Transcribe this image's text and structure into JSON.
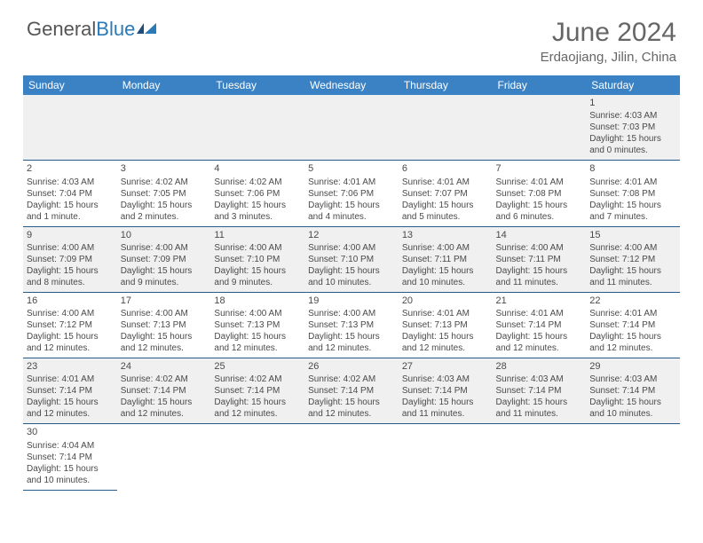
{
  "logo": {
    "text1": "General",
    "text2": "Blue"
  },
  "title": "June 2024",
  "subtitle": "Erdaojiang, Jilin, China",
  "colors": {
    "header_bg": "#3b82c4",
    "header_text": "#ffffff",
    "row_border": "#2a5a8a",
    "alt_row": "#f0f0f0",
    "text": "#4a4a4a"
  },
  "day_headers": [
    "Sunday",
    "Monday",
    "Tuesday",
    "Wednesday",
    "Thursday",
    "Friday",
    "Saturday"
  ],
  "weeks": [
    [
      null,
      null,
      null,
      null,
      null,
      null,
      {
        "n": "1",
        "sr": "4:03 AM",
        "ss": "7:03 PM",
        "d1": "15 hours",
        "d2": "and 0 minutes."
      }
    ],
    [
      {
        "n": "2",
        "sr": "4:03 AM",
        "ss": "7:04 PM",
        "d1": "15 hours",
        "d2": "and 1 minute."
      },
      {
        "n": "3",
        "sr": "4:02 AM",
        "ss": "7:05 PM",
        "d1": "15 hours",
        "d2": "and 2 minutes."
      },
      {
        "n": "4",
        "sr": "4:02 AM",
        "ss": "7:06 PM",
        "d1": "15 hours",
        "d2": "and 3 minutes."
      },
      {
        "n": "5",
        "sr": "4:01 AM",
        "ss": "7:06 PM",
        "d1": "15 hours",
        "d2": "and 4 minutes."
      },
      {
        "n": "6",
        "sr": "4:01 AM",
        "ss": "7:07 PM",
        "d1": "15 hours",
        "d2": "and 5 minutes."
      },
      {
        "n": "7",
        "sr": "4:01 AM",
        "ss": "7:08 PM",
        "d1": "15 hours",
        "d2": "and 6 minutes."
      },
      {
        "n": "8",
        "sr": "4:01 AM",
        "ss": "7:08 PM",
        "d1": "15 hours",
        "d2": "and 7 minutes."
      }
    ],
    [
      {
        "n": "9",
        "sr": "4:00 AM",
        "ss": "7:09 PM",
        "d1": "15 hours",
        "d2": "and 8 minutes."
      },
      {
        "n": "10",
        "sr": "4:00 AM",
        "ss": "7:09 PM",
        "d1": "15 hours",
        "d2": "and 9 minutes."
      },
      {
        "n": "11",
        "sr": "4:00 AM",
        "ss": "7:10 PM",
        "d1": "15 hours",
        "d2": "and 9 minutes."
      },
      {
        "n": "12",
        "sr": "4:00 AM",
        "ss": "7:10 PM",
        "d1": "15 hours",
        "d2": "and 10 minutes."
      },
      {
        "n": "13",
        "sr": "4:00 AM",
        "ss": "7:11 PM",
        "d1": "15 hours",
        "d2": "and 10 minutes."
      },
      {
        "n": "14",
        "sr": "4:00 AM",
        "ss": "7:11 PM",
        "d1": "15 hours",
        "d2": "and 11 minutes."
      },
      {
        "n": "15",
        "sr": "4:00 AM",
        "ss": "7:12 PM",
        "d1": "15 hours",
        "d2": "and 11 minutes."
      }
    ],
    [
      {
        "n": "16",
        "sr": "4:00 AM",
        "ss": "7:12 PM",
        "d1": "15 hours",
        "d2": "and 12 minutes."
      },
      {
        "n": "17",
        "sr": "4:00 AM",
        "ss": "7:13 PM",
        "d1": "15 hours",
        "d2": "and 12 minutes."
      },
      {
        "n": "18",
        "sr": "4:00 AM",
        "ss": "7:13 PM",
        "d1": "15 hours",
        "d2": "and 12 minutes."
      },
      {
        "n": "19",
        "sr": "4:00 AM",
        "ss": "7:13 PM",
        "d1": "15 hours",
        "d2": "and 12 minutes."
      },
      {
        "n": "20",
        "sr": "4:01 AM",
        "ss": "7:13 PM",
        "d1": "15 hours",
        "d2": "and 12 minutes."
      },
      {
        "n": "21",
        "sr": "4:01 AM",
        "ss": "7:14 PM",
        "d1": "15 hours",
        "d2": "and 12 minutes."
      },
      {
        "n": "22",
        "sr": "4:01 AM",
        "ss": "7:14 PM",
        "d1": "15 hours",
        "d2": "and 12 minutes."
      }
    ],
    [
      {
        "n": "23",
        "sr": "4:01 AM",
        "ss": "7:14 PM",
        "d1": "15 hours",
        "d2": "and 12 minutes."
      },
      {
        "n": "24",
        "sr": "4:02 AM",
        "ss": "7:14 PM",
        "d1": "15 hours",
        "d2": "and 12 minutes."
      },
      {
        "n": "25",
        "sr": "4:02 AM",
        "ss": "7:14 PM",
        "d1": "15 hours",
        "d2": "and 12 minutes."
      },
      {
        "n": "26",
        "sr": "4:02 AM",
        "ss": "7:14 PM",
        "d1": "15 hours",
        "d2": "and 12 minutes."
      },
      {
        "n": "27",
        "sr": "4:03 AM",
        "ss": "7:14 PM",
        "d1": "15 hours",
        "d2": "and 11 minutes."
      },
      {
        "n": "28",
        "sr": "4:03 AM",
        "ss": "7:14 PM",
        "d1": "15 hours",
        "d2": "and 11 minutes."
      },
      {
        "n": "29",
        "sr": "4:03 AM",
        "ss": "7:14 PM",
        "d1": "15 hours",
        "d2": "and 10 minutes."
      }
    ],
    [
      {
        "n": "30",
        "sr": "4:04 AM",
        "ss": "7:14 PM",
        "d1": "15 hours",
        "d2": "and 10 minutes."
      },
      null,
      null,
      null,
      null,
      null,
      null
    ]
  ],
  "labels": {
    "sunrise_prefix": "Sunrise: ",
    "sunset_prefix": "Sunset: ",
    "daylight_prefix": "Daylight: "
  }
}
